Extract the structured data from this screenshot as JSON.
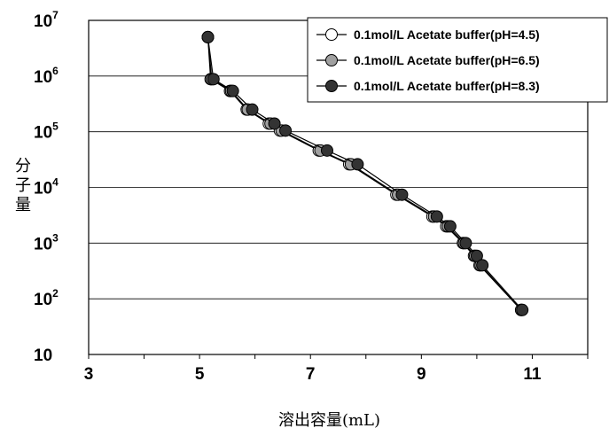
{
  "chart_data": {
    "type": "line",
    "xlabel": "溶出容量(mL)",
    "ylabel": "分子量",
    "xlim": [
      3,
      12
    ],
    "ylim": [
      10,
      10000000
    ],
    "yscale": "log",
    "grid": "horizontal",
    "legend_position": "top-right",
    "x_ticks": [
      "3",
      "5",
      "7",
      "9",
      "11"
    ],
    "y_ticks": [
      {
        "base": "10",
        "exp": "7"
      },
      {
        "base": "10",
        "exp": "6"
      },
      {
        "base": "10",
        "exp": "5"
      },
      {
        "base": "10",
        "exp": "4"
      },
      {
        "base": "10",
        "exp": "3"
      },
      {
        "base": "10",
        "exp": "2"
      },
      {
        "base": "10",
        "exp": ""
      }
    ],
    "series": [
      {
        "name": "0.1mol/L Acetate buffer(pH=4.5)",
        "color": "#ffffff",
        "x": [
          5.15,
          5.2,
          5.55,
          5.85,
          6.25,
          6.45,
          7.15,
          7.7,
          8.55,
          9.2,
          9.45,
          9.75,
          9.95,
          10.05,
          10.8
        ],
        "y": [
          5000000,
          880000,
          540000,
          250000,
          140000,
          105000,
          46000,
          26000,
          7400,
          3000,
          2000,
          1000,
          590.0,
          400,
          63
        ]
      },
      {
        "name": "0.1mol/L Acetate buffer(pH=6.5)",
        "color": "#a0a0a0",
        "x": [
          5.15,
          5.22,
          5.57,
          5.87,
          6.28,
          6.48,
          7.18,
          7.73,
          8.58,
          9.23,
          9.48,
          9.77,
          9.97,
          10.07,
          10.8
        ],
        "y": [
          5000000,
          880000,
          540000,
          250000,
          140000,
          105000,
          46000,
          26000,
          7400,
          3000,
          2000,
          1000,
          590,
          400,
          63
        ]
      },
      {
        "name": "0.1mol/L Acetate buffer(pH=8.3)",
        "color": "#333333",
        "x": [
          5.15,
          5.25,
          5.6,
          5.95,
          6.35,
          6.55,
          7.3,
          7.85,
          8.65,
          9.28,
          9.52,
          9.8,
          10.0,
          10.1,
          10.82
        ],
        "y": [
          5000000,
          880000,
          540000,
          250000,
          140000,
          105000,
          46000,
          26000,
          7400,
          3000,
          2000,
          1000,
          590,
          400,
          63
        ]
      }
    ]
  }
}
